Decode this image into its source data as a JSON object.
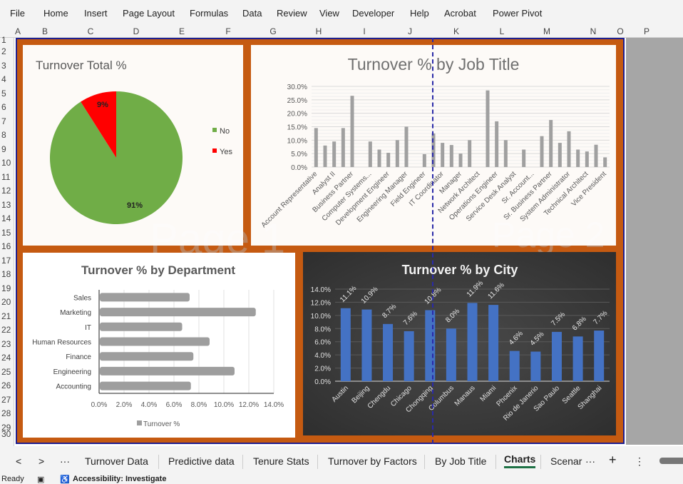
{
  "menu": [
    "File",
    "Home",
    "Insert",
    "Page Layout",
    "Formulas",
    "Data",
    "Review",
    "View",
    "Developer",
    "Help",
    "Acrobat",
    "Power Pivot"
  ],
  "columns": [
    "A",
    "B",
    "C",
    "D",
    "E",
    "F",
    "G",
    "H",
    "I",
    "J",
    "K",
    "L",
    "M",
    "N",
    "O",
    "P"
  ],
  "rows": [
    "1",
    "2",
    "3",
    "4",
    "5",
    "6",
    "7",
    "8",
    "9",
    "10",
    "11",
    "12",
    "13",
    "14",
    "15",
    "16",
    "17",
    "18",
    "19",
    "20",
    "21",
    "22",
    "23",
    "24",
    "25",
    "26",
    "27",
    "28",
    "29",
    "30"
  ],
  "watermarks": [
    "Page 1",
    "Page 2"
  ],
  "chart_data": [
    {
      "type": "pie",
      "title": "Turnover Total %",
      "categories": [
        "No",
        "Yes"
      ],
      "values": [
        91,
        9
      ],
      "data_labels": [
        "91%",
        "9%"
      ],
      "colors": [
        "#70ad47",
        "#ff0000"
      ],
      "legend": "right"
    },
    {
      "type": "bar",
      "title": "Turnover % by Job Title",
      "categories": [
        "Account Representative",
        "",
        "Analyst II",
        "",
        "Business Partner",
        "",
        "Computer Systems...",
        "",
        "Development Engineer",
        "",
        "Engineering Manager",
        "",
        "Field Engineer",
        "",
        "IT Coordinator",
        "",
        "Manager",
        "",
        "Network Architect",
        "",
        "Operations Engineer",
        "",
        "Service Desk Analyst",
        "",
        "Sr. Account...",
        "",
        "Sr. Business Partner",
        "",
        "System Administrator",
        "",
        "Technical Architect",
        "",
        "Vice President"
      ],
      "values": [
        14.5,
        8,
        9.5,
        14.5,
        26.5,
        0,
        9.5,
        6.5,
        5.3,
        10,
        15,
        0,
        4.8,
        12.5,
        9,
        8.2,
        5,
        10,
        0,
        28.5,
        17,
        10,
        0,
        6.5,
        0,
        11.5,
        17.5,
        9,
        13.3,
        6.5,
        5.8,
        8.3,
        3.6
      ],
      "yticks": [
        "0.0%",
        "5.0%",
        "10.0%",
        "15.0%",
        "20.0%",
        "25.0%",
        "30.0%"
      ],
      "ylim": [
        0,
        30
      ],
      "grid": true,
      "color": "#a0a0a0"
    },
    {
      "type": "bar",
      "orientation": "horizontal",
      "title": "Turnover % by Department",
      "categories": [
        "Sales",
        "Marketing",
        "IT",
        "Human Resources",
        "Finance",
        "Engineering",
        "Accounting"
      ],
      "series": [
        {
          "name": "Turnover %",
          "values": [
            7.2,
            12.5,
            6.6,
            8.8,
            7.5,
            10.8,
            7.3
          ]
        }
      ],
      "xticks": [
        "0.0%",
        "2.0%",
        "4.0%",
        "6.0%",
        "8.0%",
        "10.0%",
        "12.0%",
        "14.0%"
      ],
      "xlim": [
        0,
        14
      ],
      "legend": "bottom",
      "color": "#9e9e9e"
    },
    {
      "type": "bar",
      "title": "Turnover % by City",
      "categories": [
        "Austin",
        "Beijing",
        "Chengdu",
        "Chicago",
        "Chongqing",
        "Columbus",
        "Manaus",
        "Miami",
        "Phoenix",
        "Rio de Janerio",
        "Sao Paulo",
        "Seattle",
        "Shanghai"
      ],
      "values": [
        11.1,
        10.9,
        8.7,
        7.6,
        10.8,
        8.0,
        11.9,
        11.6,
        4.6,
        4.5,
        7.5,
        6.8,
        7.7
      ],
      "data_labels": [
        "11.1%",
        "10.9%",
        "8.7%",
        "7.6%",
        "10.8%",
        "8.0%",
        "11.9%",
        "11.6%",
        "4.6%",
        "4.5%",
        "7.5%",
        "6.8%",
        "7.7%"
      ],
      "yticks": [
        "0.0%",
        "2.0%",
        "4.0%",
        "6.0%",
        "8.0%",
        "10.0%",
        "12.0%",
        "14.0%"
      ],
      "ylim": [
        0,
        14
      ],
      "grid": true,
      "color": "#4472c4",
      "background": "#404040"
    }
  ],
  "tabs": {
    "nav": [
      "<",
      ">",
      "···"
    ],
    "sheets": [
      "Turnover Data",
      "Predictive data",
      "Tenure Stats",
      "Turnover by Factors",
      "By Job Title",
      "Charts",
      "Scenar"
    ],
    "active": "Charts",
    "more": "···",
    "add": "+",
    "options": "⋮"
  },
  "status": {
    "ready": "Ready",
    "accessibility": "Accessibility: Investigate"
  }
}
